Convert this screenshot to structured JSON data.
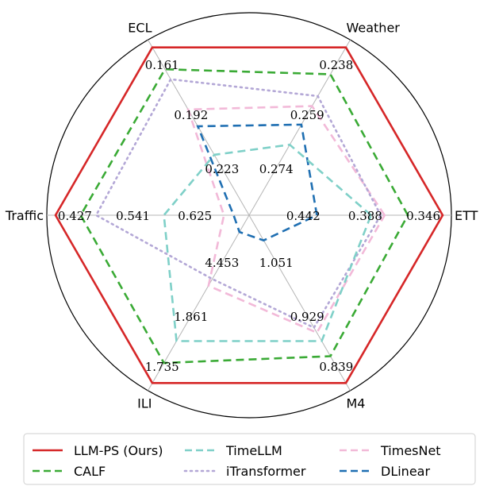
{
  "chart_data": {
    "type": "radar",
    "axes": [
      "ETT",
      "Weather",
      "ECL",
      "Traffic",
      "ILI",
      "M4"
    ],
    "tick_labels": {
      "ETT": [
        "0.346",
        "0.388",
        "0.442"
      ],
      "Weather": [
        "0.238",
        "0.259",
        "0.274"
      ],
      "ECL": [
        "0.161",
        "0.192",
        "0.223"
      ],
      "Traffic": [
        "0.427",
        "0.541",
        "0.625"
      ],
      "ILI": [
        "1.735",
        "1.861",
        "4.453"
      ],
      "M4": [
        "0.839",
        "0.929",
        "1.051"
      ]
    },
    "series": [
      {
        "name": "LLM-PS (Ours)",
        "color": "#d62728",
        "style": "solid",
        "values": [
          1.0,
          1.0,
          1.0,
          1.0,
          1.0,
          1.0
        ]
      },
      {
        "name": "CALF",
        "color": "#3aaa35",
        "style": "dashed",
        "values": [
          0.82,
          0.84,
          0.87,
          0.87,
          0.88,
          0.84
        ]
      },
      {
        "name": "TimeLLM",
        "color": "#7fd0c8",
        "style": "dashed",
        "values": [
          0.63,
          0.42,
          0.36,
          0.44,
          0.75,
          0.75
        ]
      },
      {
        "name": "iTransformer",
        "color": "#b3a7d6",
        "style": "dotted",
        "values": [
          0.68,
          0.71,
          0.81,
          0.79,
          0.38,
          0.67
        ]
      },
      {
        "name": "TimesNet",
        "color": "#f2b9d8",
        "style": "dashed",
        "values": [
          0.7,
          0.65,
          0.63,
          0.13,
          0.42,
          0.7
        ]
      },
      {
        "name": "DLinear",
        "color": "#1f6fb2",
        "style": "dashed",
        "values": [
          0.35,
          0.54,
          0.53,
          0.08,
          0.1,
          0.15
        ]
      }
    ],
    "grid": true,
    "legend_position": "bottom"
  }
}
